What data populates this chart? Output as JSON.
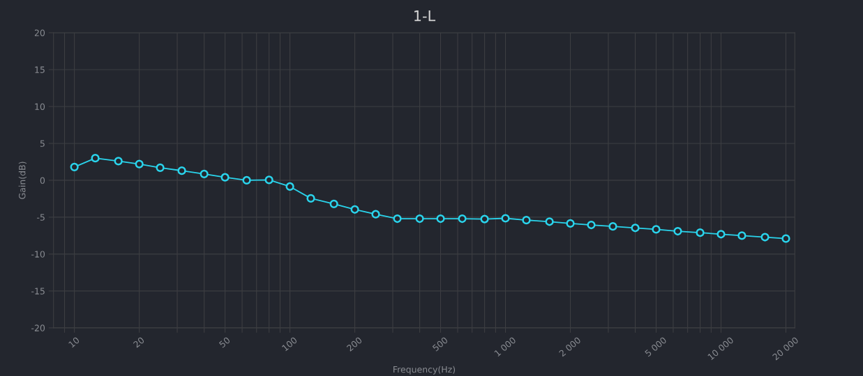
{
  "chart_data": {
    "type": "line",
    "title": "1-L",
    "xlabel": "Frequency(Hz)",
    "ylabel": "Gain(dB)",
    "log": "x",
    "grid": true,
    "marker": "circle",
    "line_style": "solid",
    "x": [
      10,
      12.5,
      16,
      20,
      25,
      31.5,
      40,
      50,
      63,
      80,
      100,
      125,
      160,
      200,
      250,
      315,
      400,
      500,
      630,
      800,
      1000,
      1250,
      1600,
      2000,
      2500,
      3150,
      4000,
      5000,
      6300,
      8000,
      10000,
      12500,
      16000,
      20000
    ],
    "series": [
      {
        "color": "#2ad4ec",
        "values": [
          1.8,
          3.0,
          2.6,
          2.2,
          1.7,
          1.3,
          0.85,
          0.4,
          0.0,
          0.05,
          -0.85,
          -2.45,
          -3.2,
          -3.95,
          -4.6,
          -5.2,
          -5.2,
          -5.2,
          -5.2,
          -5.25,
          -5.15,
          -5.4,
          -5.6,
          -5.85,
          -6.05,
          -6.25,
          -6.45,
          -6.65,
          -6.9,
          -7.1,
          -7.3,
          -7.5,
          -7.7,
          -7.9
        ]
      }
    ],
    "xlim": [
      8,
      22000
    ],
    "ylim": [
      -20,
      20
    ],
    "xticks": [
      {
        "value": 9,
        "label": null
      },
      10,
      20,
      {
        "value": 30,
        "label": null
      },
      {
        "value": 40,
        "label": null
      },
      50,
      {
        "value": 60,
        "label": null
      },
      {
        "value": 70,
        "label": null
      },
      {
        "value": 80,
        "label": null
      },
      {
        "value": 90,
        "label": null
      },
      100,
      200,
      {
        "value": 300,
        "label": null
      },
      {
        "value": 400,
        "label": null
      },
      500,
      {
        "value": 600,
        "label": null
      },
      {
        "value": 700,
        "label": null
      },
      {
        "value": 800,
        "label": null
      },
      {
        "value": 900,
        "label": null
      },
      {
        "value": 1000,
        "label": "1 000"
      },
      {
        "value": 2000,
        "label": "2 000"
      },
      {
        "value": 3000,
        "label": null
      },
      {
        "value": 4000,
        "label": null
      },
      {
        "value": 5000,
        "label": "5 000"
      },
      {
        "value": 6000,
        "label": null
      },
      {
        "value": 7000,
        "label": null
      },
      {
        "value": 8000,
        "label": null
      },
      {
        "value": 9000,
        "label": null
      },
      {
        "value": 10000,
        "label": "10 000"
      },
      {
        "value": 20000,
        "label": "20 000"
      }
    ],
    "yticks": [
      -20,
      -15,
      -10,
      -5,
      0,
      5,
      10,
      15,
      20
    ]
  }
}
